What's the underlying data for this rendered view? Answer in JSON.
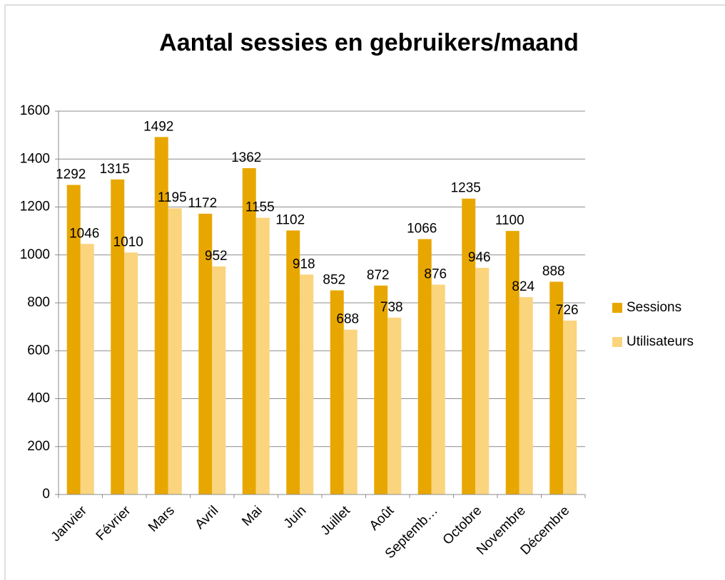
{
  "chart_data": {
    "type": "bar",
    "title": "Aantal sessies en gebruikers/maand",
    "categories": [
      "Janvier",
      "Février",
      "Mars",
      "Avril",
      "Mai",
      "Juin",
      "Juillet",
      "Août",
      "Septemb…",
      "Octobre",
      "Novembre",
      "Décembre"
    ],
    "series": [
      {
        "name": "Sessions",
        "color": "#e8a700",
        "values": [
          1292,
          1315,
          1492,
          1172,
          1362,
          1102,
          852,
          872,
          1066,
          1235,
          1100,
          888
        ]
      },
      {
        "name": "Utilisateurs",
        "color": "#fbd47e",
        "values": [
          1046,
          1010,
          1195,
          952,
          1155,
          918,
          688,
          738,
          876,
          946,
          824,
          726
        ]
      }
    ],
    "ylim": [
      0,
      1600
    ],
    "yticks": [
      0,
      200,
      400,
      600,
      800,
      1000,
      1200,
      1400,
      1600
    ],
    "grid": true,
    "legend": "right"
  }
}
